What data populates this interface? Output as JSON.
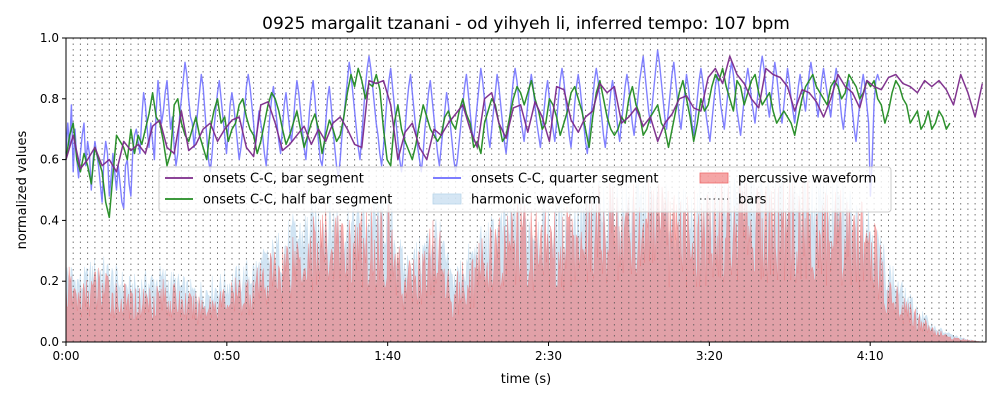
{
  "chart_data": {
    "type": "line",
    "title": "0925 margalit tzanani - od yihyeh li, inferred tempo: 107 bpm",
    "xlabel": "time (s)",
    "ylabel": "normalized values",
    "xlim": [
      0,
      286
    ],
    "ylim": [
      0,
      1.0
    ],
    "grid": false,
    "legend_position": "center-left, upper-middle",
    "x_ticks": [
      0,
      50,
      100,
      150,
      200,
      250
    ],
    "x_tick_labels": [
      "0:00",
      "0:50",
      "1:40",
      "2:30",
      "3:20",
      "4:10"
    ],
    "y_ticks": [
      0,
      0.2,
      0.4,
      0.6,
      0.8,
      1.0
    ],
    "y_tick_labels": [
      "0.0",
      "0.2",
      "0.4",
      "0.6",
      "0.8",
      "1.0"
    ],
    "bars_interval_s": 2.243,
    "bars_start_s": 0.0,
    "series": [
      {
        "name": "onsets C-C, bar segment",
        "color": "#7b2a8a",
        "x_start": 0.0,
        "x_step": 2.243,
        "values": [
          0.6,
          0.68,
          0.57,
          0.6,
          0.64,
          0.58,
          0.6,
          0.56,
          0.66,
          0.63,
          0.65,
          0.62,
          0.71,
          0.73,
          0.64,
          0.62,
          0.76,
          0.63,
          0.65,
          0.7,
          0.72,
          0.66,
          0.7,
          0.73,
          0.74,
          0.64,
          0.61,
          0.78,
          0.79,
          0.72,
          0.63,
          0.65,
          0.68,
          0.71,
          0.65,
          0.7,
          0.66,
          0.72,
          0.74,
          0.7,
          0.65,
          0.64,
          0.86,
          0.85,
          0.86,
          0.78,
          0.6,
          0.69,
          0.72,
          0.64,
          0.6,
          0.7,
          0.68,
          0.72,
          0.75,
          0.78,
          0.7,
          0.64,
          0.8,
          0.82,
          0.72,
          0.67,
          0.77,
          0.78,
          0.69,
          0.79,
          0.74,
          0.66,
          0.84,
          0.83,
          0.73,
          0.69,
          0.74,
          0.76,
          0.85,
          0.82,
          0.84,
          0.72,
          0.74,
          0.77,
          0.71,
          0.74,
          0.66,
          0.72,
          0.75,
          0.8,
          0.81,
          0.77,
          0.76,
          0.87,
          0.9,
          0.85,
          0.94,
          0.88,
          0.85,
          0.8,
          0.77,
          0.9,
          0.88,
          0.87,
          0.84,
          0.76,
          0.83,
          0.82,
          0.79,
          0.74,
          0.8,
          0.88,
          0.84,
          0.82,
          0.77,
          0.86,
          0.84,
          0.83,
          0.87,
          0.88,
          0.85,
          0.84,
          0.82,
          0.86,
          0.84,
          0.86,
          0.83,
          0.78,
          0.88,
          0.82,
          0.74,
          0.85,
          0.78,
          0.75
        ]
      },
      {
        "name": "onsets C-C, half bar segment",
        "color": "#228b22",
        "x_start": 0.0,
        "x_step": 1.1215,
        "values": [
          0.6,
          0.68,
          0.72,
          0.6,
          0.56,
          0.62,
          0.58,
          0.52,
          0.64,
          0.6,
          0.56,
          0.46,
          0.41,
          0.55,
          0.68,
          0.66,
          0.64,
          0.6,
          0.7,
          0.62,
          0.68,
          0.65,
          0.7,
          0.75,
          0.82,
          0.74,
          0.72,
          0.66,
          0.58,
          0.62,
          0.78,
          0.8,
          0.72,
          0.68,
          0.66,
          0.7,
          0.74,
          0.68,
          0.64,
          0.6,
          0.7,
          0.76,
          0.8,
          0.72,
          0.74,
          0.66,
          0.7,
          0.72,
          0.78,
          0.8,
          0.74,
          0.7,
          0.68,
          0.62,
          0.66,
          0.72,
          0.78,
          0.82,
          0.8,
          0.76,
          0.7,
          0.65,
          0.68,
          0.72,
          0.76,
          0.7,
          0.64,
          0.68,
          0.72,
          0.75,
          0.7,
          0.62,
          0.68,
          0.73,
          0.7,
          0.66,
          0.68,
          0.74,
          0.82,
          0.88,
          0.84,
          0.9,
          0.86,
          0.8,
          0.85,
          0.84,
          0.88,
          0.83,
          0.7,
          0.6,
          0.58,
          0.72,
          0.78,
          0.7,
          0.66,
          0.63,
          0.6,
          0.65,
          0.72,
          0.78,
          0.74,
          0.7,
          0.68,
          0.66,
          0.68,
          0.74,
          0.76,
          0.72,
          0.7,
          0.76,
          0.8,
          0.75,
          0.72,
          0.64,
          0.66,
          0.62,
          0.72,
          0.76,
          0.8,
          0.78,
          0.72,
          0.66,
          0.68,
          0.74,
          0.8,
          0.84,
          0.82,
          0.78,
          0.82,
          0.86,
          0.8,
          0.76,
          0.7,
          0.72,
          0.8,
          0.78,
          0.74,
          0.68,
          0.72,
          0.76,
          0.82,
          0.84,
          0.8,
          0.76,
          0.7,
          0.64,
          0.74,
          0.82,
          0.86,
          0.8,
          0.74,
          0.7,
          0.68,
          0.7,
          0.74,
          0.72,
          0.8,
          0.84,
          0.78,
          0.75,
          0.68,
          0.7,
          0.74,
          0.76,
          0.78,
          0.72,
          0.7,
          0.64,
          0.7,
          0.76,
          0.82,
          0.86,
          0.8,
          0.74,
          0.66,
          0.72,
          0.8,
          0.76,
          0.78,
          0.84,
          0.88,
          0.86,
          0.9,
          0.84,
          0.8,
          0.76,
          0.86,
          0.84,
          0.78,
          0.82,
          0.86,
          0.88,
          0.82,
          0.78,
          0.8,
          0.82,
          0.76,
          0.72,
          0.74,
          0.76,
          0.74,
          0.72,
          0.68,
          0.74,
          0.8,
          0.84,
          0.86,
          0.88,
          0.84,
          0.82,
          0.8,
          0.78,
          0.84,
          0.86,
          0.84,
          0.8,
          0.82,
          0.88,
          0.86,
          0.84,
          0.8,
          0.82,
          0.86,
          0.84,
          0.86,
          0.8,
          0.78,
          0.72,
          0.76,
          0.82,
          0.86,
          0.84,
          0.8,
          0.78,
          0.72,
          0.74,
          0.76,
          0.7,
          0.72,
          0.76,
          0.7,
          0.72,
          0.76,
          0.74,
          0.7,
          0.72
        ]
      },
      {
        "name": "onsets C-C, quarter segment",
        "color": "#6b6bff",
        "x_start": 0.0,
        "x_step": 0.5607,
        "values": [
          0.62,
          0.72,
          0.64,
          0.78,
          0.56,
          0.7,
          0.6,
          0.54,
          0.62,
          0.68,
          0.72,
          0.58,
          0.66,
          0.62,
          0.5,
          0.6,
          0.66,
          0.62,
          0.58,
          0.52,
          0.46,
          0.6,
          0.66,
          0.62,
          0.48,
          0.54,
          0.62,
          0.56,
          0.5,
          0.58,
          0.52,
          0.46,
          0.44,
          0.58,
          0.6,
          0.52,
          0.48,
          0.62,
          0.68,
          0.7,
          0.66,
          0.62,
          0.74,
          0.82,
          0.78,
          0.7,
          0.64,
          0.72,
          0.66,
          0.6,
          0.76,
          0.86,
          0.8,
          0.72,
          0.76,
          0.82,
          0.86,
          0.78,
          0.7,
          0.74,
          0.64,
          0.58,
          0.62,
          0.74,
          0.8,
          0.86,
          0.92,
          0.88,
          0.8,
          0.74,
          0.72,
          0.64,
          0.7,
          0.76,
          0.82,
          0.88,
          0.84,
          0.76,
          0.68,
          0.6,
          0.56,
          0.62,
          0.7,
          0.76,
          0.82,
          0.86,
          0.8,
          0.74,
          0.68,
          0.62,
          0.7,
          0.78,
          0.82,
          0.78,
          0.72,
          0.66,
          0.6,
          0.64,
          0.7,
          0.76,
          0.84,
          0.88,
          0.84,
          0.78,
          0.72,
          0.64,
          0.7,
          0.76,
          0.72,
          0.68,
          0.62,
          0.58,
          0.66,
          0.74,
          0.8,
          0.84,
          0.78,
          0.72,
          0.66,
          0.62,
          0.7,
          0.78,
          0.82,
          0.76,
          0.7,
          0.66,
          0.72,
          0.8,
          0.86,
          0.82,
          0.76,
          0.7,
          0.64,
          0.6,
          0.68,
          0.76,
          0.82,
          0.86,
          0.8,
          0.72,
          0.66,
          0.6,
          0.58,
          0.64,
          0.72,
          0.8,
          0.84,
          0.78,
          0.7,
          0.64,
          0.58,
          0.54,
          0.6,
          0.68,
          0.74,
          0.8,
          0.86,
          0.92,
          0.88,
          0.82,
          0.76,
          0.7,
          0.64,
          0.6,
          0.68,
          0.76,
          0.84,
          0.9,
          0.94,
          0.9,
          0.84,
          0.78,
          0.72,
          0.68,
          0.62,
          0.58,
          0.64,
          0.72,
          0.8,
          0.86,
          0.9,
          0.84,
          0.78,
          0.72,
          0.66,
          0.6,
          0.56,
          0.62,
          0.7,
          0.78,
          0.84,
          0.88,
          0.82,
          0.76,
          0.7,
          0.64,
          0.6,
          0.56,
          0.62,
          0.7,
          0.76,
          0.82,
          0.86,
          0.8,
          0.74,
          0.68,
          0.62,
          0.58,
          0.64,
          0.7,
          0.76,
          0.82,
          0.78,
          0.72,
          0.66,
          0.6,
          0.56,
          0.6,
          0.66,
          0.72,
          0.78,
          0.84,
          0.88,
          0.82,
          0.76,
          0.7,
          0.66,
          0.72,
          0.78,
          0.84,
          0.9,
          0.86,
          0.8,
          0.74,
          0.68,
          0.64,
          0.7,
          0.76,
          0.82,
          0.88,
          0.84,
          0.78,
          0.72,
          0.66,
          0.62,
          0.68,
          0.74,
          0.8,
          0.86,
          0.9,
          0.86,
          0.8,
          0.74,
          0.7,
          0.66,
          0.72,
          0.78,
          0.84,
          0.88,
          0.84,
          0.78,
          0.72,
          0.68,
          0.64,
          0.7,
          0.76,
          0.82,
          0.86,
          0.8,
          0.74,
          0.7,
          0.66,
          0.72,
          0.8,
          0.86,
          0.9,
          0.86,
          0.8,
          0.74,
          0.68,
          0.64,
          0.7,
          0.78,
          0.84,
          0.88,
          0.84,
          0.78,
          0.72,
          0.66,
          0.62,
          0.68,
          0.74,
          0.8,
          0.86,
          0.9,
          0.86,
          0.8,
          0.74,
          0.68,
          0.64,
          0.7,
          0.76,
          0.82,
          0.86,
          0.82,
          0.76,
          0.7,
          0.66,
          0.72,
          0.78,
          0.84,
          0.88,
          0.84,
          0.78,
          0.72,
          0.68,
          0.74,
          0.8,
          0.86,
          0.9,
          0.94,
          0.88,
          0.82,
          0.76,
          0.72,
          0.78,
          0.84,
          0.9,
          0.96,
          0.92,
          0.86,
          0.8,
          0.74,
          0.7,
          0.76,
          0.82,
          0.88,
          0.92,
          0.86,
          0.8,
          0.74,
          0.7,
          0.76,
          0.82,
          0.88,
          0.84,
          0.78,
          0.72,
          0.68,
          0.74,
          0.8,
          0.86,
          0.9,
          0.86,
          0.8,
          0.74,
          0.7,
          0.66,
          0.72,
          0.78,
          0.84,
          0.88,
          0.84,
          0.78,
          0.74,
          0.7,
          0.76,
          0.82,
          0.88,
          0.92,
          0.88,
          0.82,
          0.76,
          0.72,
          0.68,
          0.74,
          0.8,
          0.86,
          0.9,
          0.86,
          0.8,
          0.76,
          0.72,
          0.78,
          0.84,
          0.9,
          0.94,
          0.9,
          0.84,
          0.78,
          0.74,
          0.8,
          0.86,
          0.92,
          0.88,
          0.82,
          0.76,
          0.72,
          0.78,
          0.84,
          0.9,
          0.86,
          0.8,
          0.76,
          0.72,
          0.78,
          0.84,
          0.88,
          0.84,
          0.8,
          0.76,
          0.82,
          0.88,
          0.92,
          0.88,
          0.82,
          0.78,
          0.74,
          0.8,
          0.86,
          0.9,
          0.86,
          0.82,
          0.78,
          0.74,
          0.8,
          0.86,
          0.9,
          0.86,
          0.8,
          0.74,
          0.7,
          0.76,
          0.82,
          0.86,
          0.82,
          0.76,
          0.7,
          0.66,
          0.72,
          0.78,
          0.84,
          0.88,
          0.84,
          0.78,
          0.72,
          0.48,
          0.6,
          0.78,
          0.86,
          0.88,
          0.86
        ]
      }
    ],
    "areas": [
      {
        "name": "harmonic waveform",
        "color": "#b9d6ec",
        "envelope_x": [
          0,
          5,
          10,
          20,
          30,
          40,
          50,
          60,
          70,
          80,
          90,
          100,
          105,
          110,
          115,
          120,
          130,
          140,
          150,
          160,
          170,
          180,
          190,
          200,
          210,
          220,
          230,
          240,
          250,
          255,
          260,
          265,
          270,
          275,
          280,
          285
        ],
        "envelope_y": [
          0.28,
          0.24,
          0.3,
          0.22,
          0.26,
          0.2,
          0.24,
          0.3,
          0.42,
          0.5,
          0.48,
          0.52,
          0.3,
          0.35,
          0.45,
          0.25,
          0.4,
          0.5,
          0.46,
          0.52,
          0.55,
          0.56,
          0.5,
          0.54,
          0.58,
          0.55,
          0.56,
          0.55,
          0.48,
          0.3,
          0.2,
          0.12,
          0.06,
          0.03,
          0.01,
          0.0
        ]
      },
      {
        "name": "percussive waveform",
        "color": "#ee6a6a",
        "envelope_x": [
          0,
          5,
          10,
          20,
          30,
          40,
          50,
          60,
          70,
          80,
          90,
          100,
          105,
          110,
          115,
          120,
          130,
          140,
          150,
          160,
          170,
          180,
          190,
          200,
          210,
          220,
          230,
          240,
          250,
          255,
          260,
          265,
          270,
          275,
          280,
          285
        ],
        "envelope_y": [
          0.26,
          0.2,
          0.26,
          0.18,
          0.22,
          0.16,
          0.2,
          0.26,
          0.4,
          0.46,
          0.44,
          0.48,
          0.26,
          0.32,
          0.42,
          0.22,
          0.36,
          0.48,
          0.44,
          0.5,
          0.54,
          0.55,
          0.48,
          0.52,
          0.55,
          0.52,
          0.54,
          0.52,
          0.44,
          0.26,
          0.16,
          0.1,
          0.05,
          0.02,
          0.01,
          0.0
        ]
      }
    ],
    "legend": [
      {
        "label": "onsets C-C, bar segment",
        "kind": "line",
        "color": "#7b2a8a"
      },
      {
        "label": "onsets C-C, half bar segment",
        "kind": "line",
        "color": "#228b22"
      },
      {
        "label": "onsets C-C, quarter segment",
        "kind": "line",
        "color": "#6b6bff"
      },
      {
        "label": "harmonic waveform",
        "kind": "area",
        "color": "#b9d6ec"
      },
      {
        "label": "percussive waveform",
        "kind": "area",
        "color": "#ee6a6a"
      },
      {
        "label": "bars",
        "kind": "dotted",
        "color": "#555555"
      }
    ]
  }
}
